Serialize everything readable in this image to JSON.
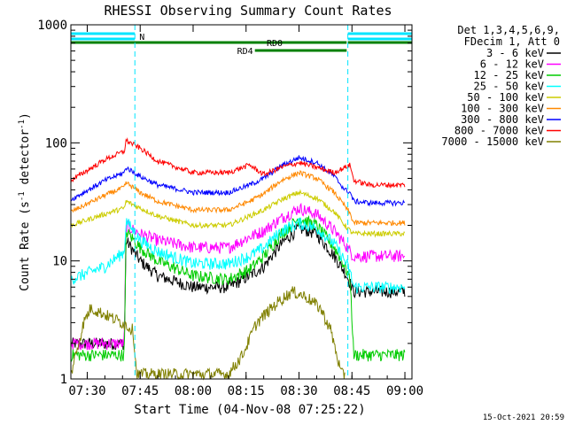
{
  "chart_data": {
    "type": "line",
    "title": "RHESSI Observing Summary Count Rates",
    "xlabel": "Start Time (04-Nov-08 07:25:22)",
    "ylabel_main": "Count Rate (s",
    "ylabel_sup1": "-1",
    "ylabel_mid": " detector",
    "ylabel_sup2": "-1",
    "ylabel_end": ")",
    "y_scale": "log",
    "ylim": [
      1,
      1000
    ],
    "xlim": [
      "07:25:22",
      "09:02:00"
    ],
    "x_ticks": [
      "07:30",
      "07:45",
      "08:00",
      "08:15",
      "08:30",
      "08:45",
      "09:00"
    ],
    "y_ticks": [
      "1",
      "10",
      "100",
      "1000"
    ],
    "timestamp": "15-Oct-2021 20:59",
    "legend_header": [
      "Det 1,3,4,5,6,9,",
      "FDecim 1, Att 0"
    ],
    "legend_position": "right",
    "annotations": [
      {
        "label": "N",
        "color": "#00e5ff",
        "segments": [
          [
            "07:25:22",
            "07:43:30"
          ],
          [
            "08:43:50",
            "09:02:00"
          ]
        ]
      },
      {
        "label": "RD0",
        "color": "#008000",
        "segments": [
          [
            "07:25:22",
            "08:43:30"
          ],
          [
            "08:43:50",
            "09:02:00"
          ]
        ]
      },
      {
        "label": "RD4",
        "color": "#008000",
        "segments": [
          [
            "08:17:30",
            "08:43:30"
          ]
        ]
      }
    ],
    "vertical_markers": [
      "07:43:30",
      "08:43:50",
      "09:02:00"
    ],
    "series": [
      {
        "name": "3 - 6 keV",
        "color": "#000000",
        "x": [
          "07:25:22",
          "07:40:30",
          "07:41:00",
          "07:45",
          "07:50",
          "08:00",
          "08:10",
          "08:16",
          "08:20",
          "08:25",
          "08:30",
          "08:35",
          "08:40",
          "08:43",
          "08:44:30",
          "08:45:30",
          "08:50",
          "08:55",
          "09:00"
        ],
        "y": [
          2.0,
          2.0,
          15,
          10,
          7.5,
          6.0,
          6.0,
          7.5,
          9,
          14,
          19,
          17,
          11,
          8,
          6.5,
          5.5,
          5.5,
          5.5,
          5.5
        ]
      },
      {
        "name": "6 - 12 keV",
        "color": "#ff00ff",
        "x": [
          "07:25:22",
          "07:40:30",
          "07:41:00",
          "07:45",
          "07:50",
          "08:00",
          "08:10",
          "08:16",
          "08:20",
          "08:25",
          "08:30",
          "08:35",
          "08:40",
          "08:43",
          "08:44:30",
          "08:45:30",
          "08:50",
          "08:55",
          "09:00"
        ],
        "y": [
          2.0,
          2.0,
          20,
          17,
          15,
          13,
          13,
          16,
          18,
          23,
          28,
          25,
          18,
          14,
          12,
          11,
          11,
          11,
          11
        ]
      },
      {
        "name": "12 - 25 keV",
        "color": "#00cc00",
        "x": [
          "07:25:22",
          "07:40:30",
          "07:41:00",
          "07:45",
          "07:50",
          "08:00",
          "08:10",
          "08:16",
          "08:20",
          "08:25",
          "08:30",
          "08:35",
          "08:40",
          "08:43",
          "08:44:30",
          "08:45:30",
          "08:50",
          "08:55",
          "09:00"
        ],
        "y": [
          1.6,
          1.6,
          18,
          13,
          10,
          7.5,
          7.0,
          8.5,
          11,
          17,
          23,
          20,
          13,
          9,
          7,
          1.6,
          1.6,
          1.6,
          1.6
        ]
      },
      {
        "name": "25 - 50 keV",
        "color": "#00ffff",
        "x": [
          "07:25:22",
          "07:35",
          "07:40:30",
          "07:41:00",
          "07:45",
          "07:50",
          "08:00",
          "08:10",
          "08:16",
          "08:20",
          "08:25",
          "08:30",
          "08:35",
          "08:40",
          "08:43",
          "08:44:30",
          "08:45:30",
          "08:50",
          "08:55",
          "09:00"
        ],
        "y": [
          7,
          9,
          12,
          22,
          15,
          12,
          9.5,
          9.5,
          11,
          13,
          18,
          21,
          19,
          14,
          10,
          8,
          6,
          6,
          6,
          6
        ]
      },
      {
        "name": "50 - 100 keV",
        "color": "#cccc00",
        "x": [
          "07:25:22",
          "07:35",
          "07:40:30",
          "07:41:00",
          "07:45",
          "07:50",
          "08:00",
          "08:10",
          "08:16",
          "08:20",
          "08:25",
          "08:30",
          "08:35",
          "08:40",
          "08:43",
          "08:44:30",
          "08:45:30",
          "08:50",
          "08:55",
          "09:00"
        ],
        "y": [
          20,
          25,
          28,
          32,
          28,
          24,
          20,
          20,
          24,
          27,
          33,
          38,
          34,
          26,
          20,
          18,
          17,
          17,
          17,
          17
        ]
      },
      {
        "name": "100 - 300 keV",
        "color": "#ff8800",
        "x": [
          "07:25:22",
          "07:35",
          "07:40:30",
          "07:41:00",
          "07:45",
          "07:50",
          "08:00",
          "08:10",
          "08:16",
          "08:20",
          "08:25",
          "08:30",
          "08:35",
          "08:40",
          "08:43",
          "08:44:30",
          "08:45:30",
          "08:50",
          "08:55",
          "09:00"
        ],
        "y": [
          26,
          36,
          42,
          46,
          38,
          32,
          27,
          27,
          32,
          37,
          48,
          56,
          50,
          38,
          29,
          25,
          21,
          21,
          21,
          21
        ]
      },
      {
        "name": "300 - 800 keV",
        "color": "#0000ff",
        "x": [
          "07:25:22",
          "07:35",
          "07:40:30",
          "07:41:00",
          "07:45",
          "07:50",
          "08:00",
          "08:10",
          "08:16",
          "08:20",
          "08:25",
          "08:30",
          "08:35",
          "08:40",
          "08:43",
          "08:44:30",
          "08:45:30",
          "08:50",
          "08:55",
          "09:00"
        ],
        "y": [
          33,
          48,
          56,
          62,
          52,
          44,
          38,
          38,
          44,
          50,
          64,
          75,
          68,
          52,
          40,
          38,
          32,
          31,
          31,
          31
        ]
      },
      {
        "name": "800 - 7000 keV",
        "color": "#ff0000",
        "x": [
          "07:25:22",
          "07:35",
          "07:40:30",
          "07:41:00",
          "07:45",
          "07:50",
          "08:00",
          "08:10",
          "08:16",
          "08:20",
          "08:25",
          "08:30",
          "08:35",
          "08:40",
          "08:43",
          "08:44:30",
          "08:45:30",
          "08:50",
          "08:55",
          "09:00"
        ],
        "y": [
          48,
          72,
          85,
          105,
          90,
          70,
          56,
          56,
          65,
          54,
          62,
          68,
          62,
          56,
          62,
          65,
          48,
          44,
          44,
          44
        ]
      },
      {
        "name": "7000 - 15000 keV",
        "color": "#808000",
        "x": [
          "07:25:22",
          "07:29",
          "07:31",
          "07:40",
          "07:43",
          "07:44",
          "08:10",
          "08:14",
          "08:18",
          "08:24",
          "08:28",
          "08:32",
          "08:36",
          "08:39",
          "08:42",
          "08:43"
        ],
        "y": [
          1.1,
          3.0,
          4.0,
          3.0,
          2.6,
          1.1,
          1.1,
          1.6,
          3.0,
          4.5,
          5.5,
          5.0,
          4.0,
          2.6,
          1.1,
          1.1
        ]
      }
    ]
  }
}
